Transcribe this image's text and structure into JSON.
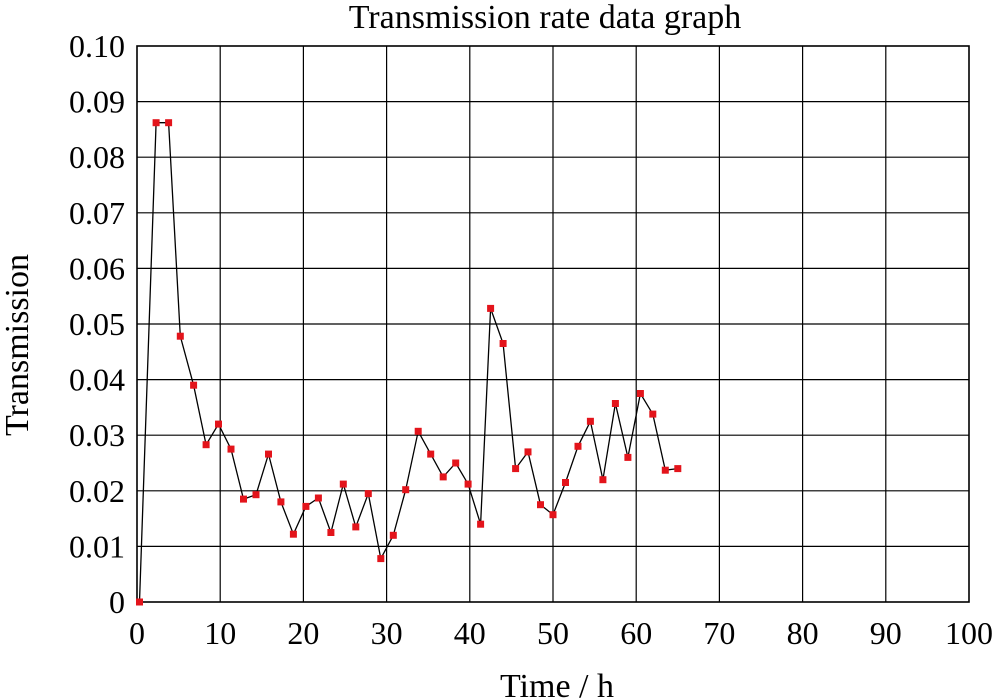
{
  "chart_data": {
    "type": "line",
    "title": "Transmission rate data graph",
    "xlabel": "Time / h",
    "ylabel": "Transmission",
    "xlim": [
      0,
      100
    ],
    "ylim": [
      0,
      0.1
    ],
    "xticks": [
      "0",
      "10",
      "20",
      "30",
      "40",
      "50",
      "60",
      "70",
      "80",
      "90",
      "100"
    ],
    "yticks": [
      "0",
      "0.01",
      "0.02",
      "0.03",
      "0.04",
      "0.05",
      "0.06",
      "0.07",
      "0.08",
      "0.09",
      "0.10"
    ],
    "grid": true,
    "colors": {
      "line": "#000000",
      "marker": "#e3141b"
    },
    "series": [
      {
        "x": [
          0.3,
          2.3,
          3.8,
          5.2,
          6.8,
          8.3,
          9.8,
          11.3,
          12.8,
          14.3,
          15.8,
          17.3,
          18.8,
          20.3,
          21.8,
          23.3,
          24.8,
          26.3,
          27.8,
          29.3,
          30.8,
          32.3,
          33.8,
          35.3,
          36.8,
          38.3,
          39.8,
          41.3,
          42.5,
          44.0,
          45.5,
          47.0,
          48.5,
          50.0,
          51.5,
          53.0,
          54.5,
          56.0,
          57.5,
          59.0,
          60.5,
          62.0,
          63.5,
          65.0
        ],
        "y": [
          0.0,
          0.0862,
          0.0862,
          0.0478,
          0.039,
          0.0283,
          0.032,
          0.0275,
          0.0185,
          0.0193,
          0.0266,
          0.018,
          0.0122,
          0.0172,
          0.0187,
          0.0125,
          0.0212,
          0.0135,
          0.0195,
          0.0078,
          0.012,
          0.0202,
          0.0307,
          0.0266,
          0.0225,
          0.025,
          0.0212,
          0.014,
          0.0528,
          0.0465,
          0.024,
          0.027,
          0.0175,
          0.0157,
          0.0215,
          0.028,
          0.0325,
          0.022,
          0.0357,
          0.026,
          0.0375,
          0.0338,
          0.0237,
          0.024
        ]
      }
    ]
  }
}
